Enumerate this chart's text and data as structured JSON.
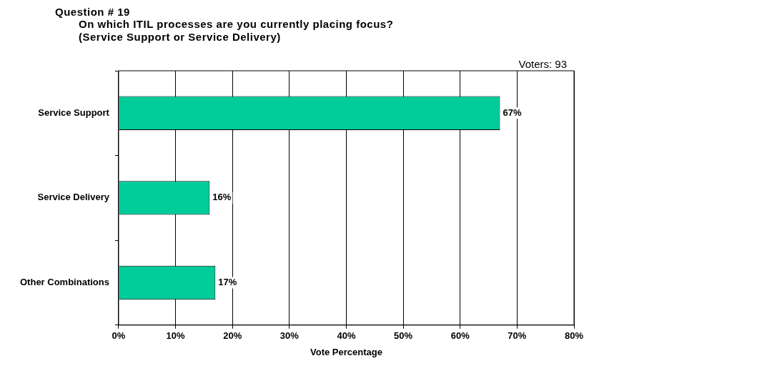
{
  "chart_data": {
    "type": "bar",
    "orientation": "horizontal",
    "title": "Question # 19",
    "subtitle": "On which ITIL processes are you currently placing focus?\n(Service Support or Service Delivery)",
    "categories": [
      "Service Support",
      "Service Delivery",
      "Other Combinations"
    ],
    "values": [
      67,
      16,
      17
    ],
    "value_labels": [
      "67%",
      "16%",
      "17%"
    ],
    "color": "#00cc99",
    "xlabel": "Vote Percentage",
    "xlim": [
      0,
      80
    ],
    "xticks": [
      {
        "value": 0,
        "label": "0%"
      },
      {
        "value": 10,
        "label": "10%"
      },
      {
        "value": 20,
        "label": "20%"
      },
      {
        "value": 30,
        "label": "30%"
      },
      {
        "value": 40,
        "label": "40%"
      },
      {
        "value": 50,
        "label": "50%"
      },
      {
        "value": 60,
        "label": "60%"
      },
      {
        "value": 70,
        "label": "70%"
      },
      {
        "value": 80,
        "label": "80%"
      }
    ],
    "grid": "x",
    "legend": false,
    "annotations": [
      "Voters: 93"
    ]
  }
}
